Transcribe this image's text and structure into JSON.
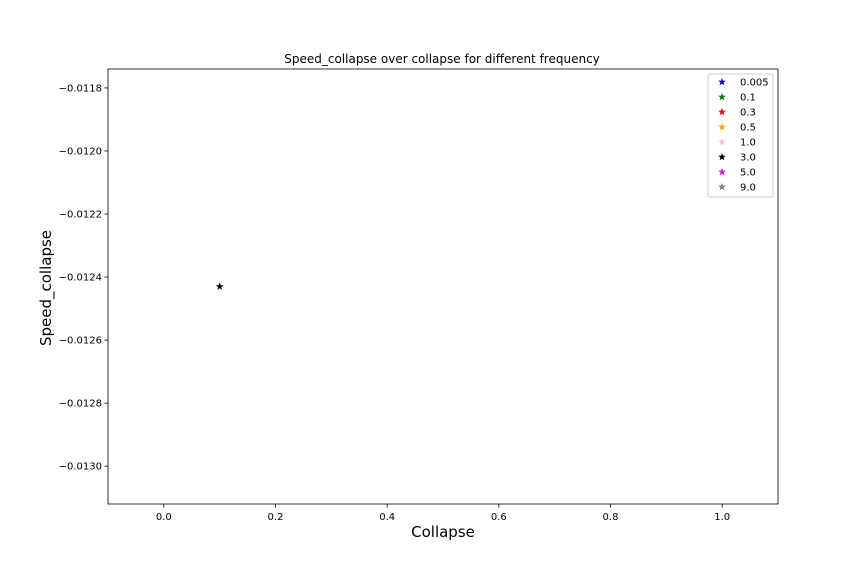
{
  "chart_data": {
    "type": "scatter",
    "title": "Speed_collapse over collapse for different frequency",
    "xlabel": "Collapse",
    "ylabel": "Speed_collapse",
    "xlim": [
      -0.1,
      1.1
    ],
    "ylim": [
      -0.01312,
      -0.01174
    ],
    "x_ticks": [
      0.0,
      0.2,
      0.4,
      0.6,
      0.8,
      1.0
    ],
    "x_tick_labels": [
      "0.0",
      "0.2",
      "0.4",
      "0.6",
      "0.8",
      "1.0"
    ],
    "y_ticks": [
      -0.0118,
      -0.012,
      -0.0122,
      -0.0124,
      -0.0126,
      -0.0128,
      -0.013
    ],
    "y_tick_labels": [
      "−0.0118",
      "−0.0120",
      "−0.0122",
      "−0.0124",
      "−0.0126",
      "−0.0128",
      "−0.0130"
    ],
    "grid": false,
    "legend_position": "top-right",
    "marker": "star",
    "series": [
      {
        "name": "0.005",
        "color": "#0000ff",
        "points": []
      },
      {
        "name": "0.1",
        "color": "#008000",
        "points": []
      },
      {
        "name": "0.3",
        "color": "#ff0000",
        "points": []
      },
      {
        "name": "0.5",
        "color": "#ffa500",
        "points": []
      },
      {
        "name": "1.0",
        "color": "#ffc0cb",
        "points": []
      },
      {
        "name": "3.0",
        "color": "#000000",
        "points": [
          {
            "x": 0.1,
            "y": -0.01243
          }
        ]
      },
      {
        "name": "5.0",
        "color": "#ff00ff",
        "points": []
      },
      {
        "name": "9.0",
        "color": "#808080",
        "points": []
      }
    ]
  }
}
